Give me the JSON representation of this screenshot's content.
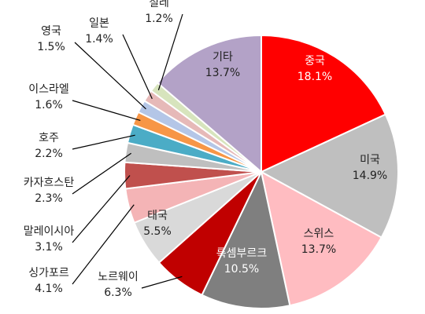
{
  "chart_data": {
    "type": "pie",
    "start_angle_deg": 0,
    "direction": "clockwise",
    "slices": [
      {
        "name": "중국",
        "value": 18.1,
        "label": "18.1%",
        "color": "#ff0000"
      },
      {
        "name": "미국",
        "value": 14.9,
        "label": "14.9%",
        "color": "#bfbfbf"
      },
      {
        "name": "스위스",
        "value": 13.7,
        "label": "13.7%",
        "color": "#ffbcc1"
      },
      {
        "name": "룩셈부르크",
        "value": 10.5,
        "label": "10.5%",
        "color": "#7f7f7f"
      },
      {
        "name": "노르웨이",
        "value": 6.3,
        "label": "6.3%",
        "color": "#c00000"
      },
      {
        "name": "태국",
        "value": 5.5,
        "label": "5.5%",
        "color": "#d9d9d9"
      },
      {
        "name": "싱가포르",
        "value": 4.1,
        "label": "4.1%",
        "color": "#f4b4b6"
      },
      {
        "name": "말레이시아",
        "value": 3.1,
        "label": "3.1%",
        "color": "#c0504d"
      },
      {
        "name": "카자흐스탄",
        "value": 2.3,
        "label": "2.3%",
        "color": "#bfbfbf"
      },
      {
        "name": "호주",
        "value": 2.2,
        "label": "2.2%",
        "color": "#4bacc6"
      },
      {
        "name": "이스라엘",
        "value": 1.6,
        "label": "1.6%",
        "color": "#f79646"
      },
      {
        "name": "영국",
        "value": 1.5,
        "label": "1.5%",
        "color": "#b4c6e7"
      },
      {
        "name": "일본",
        "value": 1.4,
        "label": "1.4%",
        "color": "#e6b9b8"
      },
      {
        "name": "칠레",
        "value": 1.2,
        "label": "1.2%",
        "color": "#d7e4bd"
      },
      {
        "name": "기타",
        "value": 13.7,
        "label": "13.7%",
        "color": "#b3a2c7"
      }
    ]
  }
}
